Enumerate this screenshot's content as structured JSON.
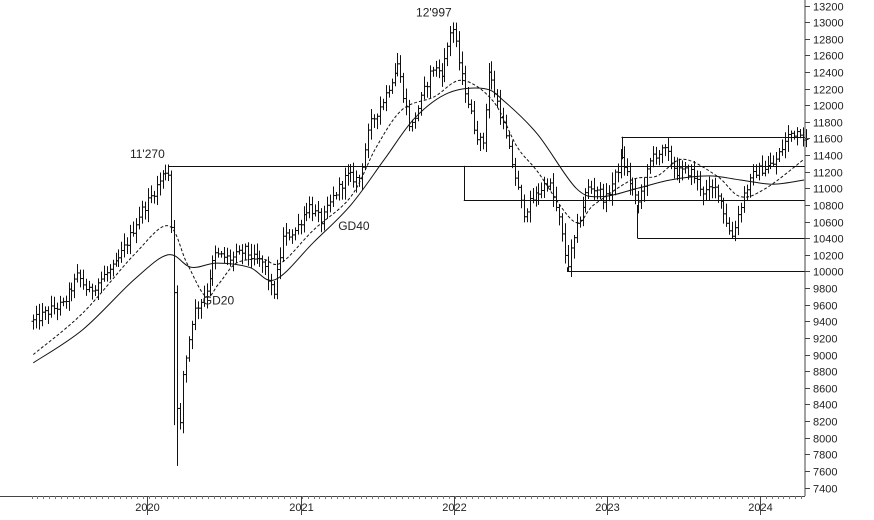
{
  "chart_data": {
    "type": "ohlc",
    "ylim": [
      7400,
      13200
    ],
    "x_range": [
      "2019-04-01",
      "2024-05-15"
    ],
    "y_ticks": [
      7400,
      7600,
      7800,
      8000,
      8200,
      8400,
      8600,
      8800,
      9000,
      9200,
      9400,
      9600,
      9800,
      10000,
      10200,
      10400,
      10600,
      10800,
      11000,
      11200,
      11400,
      11600,
      11800,
      12000,
      12200,
      12400,
      12600,
      12800,
      13000,
      13200
    ],
    "x_ticks": [
      {
        "label": "2020",
        "date": "2020-01-01"
      },
      {
        "label": "2021",
        "date": "2021-01-01"
      },
      {
        "label": "2022",
        "date": "2022-01-01"
      },
      {
        "label": "2023",
        "date": "2023-01-01"
      },
      {
        "label": "2024",
        "date": "2024-01-01"
      }
    ],
    "grid": false,
    "price_keypoints": [
      [
        "2019-04-05",
        9400
      ],
      [
        "2019-05-20",
        9550
      ],
      [
        "2019-06-15",
        9600
      ],
      [
        "2019-07-20",
        9950
      ],
      [
        "2019-08-15",
        9750
      ],
      [
        "2019-09-20",
        9950
      ],
      [
        "2019-10-15",
        10050
      ],
      [
        "2019-11-20",
        10400
      ],
      [
        "2019-12-15",
        10700
      ],
      [
        "2020-01-10",
        10900
      ],
      [
        "2020-02-20",
        11270
      ],
      [
        "2020-03-05",
        10000
      ],
      [
        "2020-03-16",
        7700
      ],
      [
        "2020-03-25",
        8700
      ],
      [
        "2020-04-20",
        9500
      ],
      [
        "2020-05-20",
        9750
      ],
      [
        "2020-06-10",
        10200
      ],
      [
        "2020-07-20",
        10150
      ],
      [
        "2020-08-20",
        10250
      ],
      [
        "2020-09-10",
        10150
      ],
      [
        "2020-10-05",
        10100
      ],
      [
        "2020-10-28",
        9700
      ],
      [
        "2020-11-20",
        10400
      ],
      [
        "2020-12-20",
        10500
      ],
      [
        "2021-01-20",
        10800
      ],
      [
        "2021-02-20",
        10600
      ],
      [
        "2021-03-20",
        10900
      ],
      [
        "2021-04-20",
        11150
      ],
      [
        "2021-05-20",
        11100
      ],
      [
        "2021-06-15",
        11750
      ],
      [
        "2021-07-20",
        12100
      ],
      [
        "2021-08-20",
        12500
      ],
      [
        "2021-09-20",
        11700
      ],
      [
        "2021-10-10",
        12000
      ],
      [
        "2021-11-10",
        12450
      ],
      [
        "2021-12-05",
        12400
      ],
      [
        "2021-12-28",
        12997
      ],
      [
        "2022-01-20",
        12350
      ],
      [
        "2022-02-20",
        11700
      ],
      [
        "2022-03-10",
        11500
      ],
      [
        "2022-03-25",
        12400
      ],
      [
        "2022-04-20",
        11950
      ],
      [
        "2022-05-20",
        11300
      ],
      [
        "2022-06-15",
        10700
      ],
      [
        "2022-07-05",
        10850
      ],
      [
        "2022-08-15",
        11100
      ],
      [
        "2022-09-10",
        10600
      ],
      [
        "2022-09-28",
        10050
      ],
      [
        "2022-10-20",
        10500
      ],
      [
        "2022-11-15",
        11000
      ],
      [
        "2022-12-10",
        11000
      ],
      [
        "2022-12-28",
        10850
      ],
      [
        "2023-02-05",
        11350
      ],
      [
        "2023-03-15",
        10800
      ],
      [
        "2023-04-20",
        11400
      ],
      [
        "2023-05-20",
        11450
      ],
      [
        "2023-06-15",
        11200
      ],
      [
        "2023-07-20",
        11200
      ],
      [
        "2023-08-20",
        10950
      ],
      [
        "2023-09-20",
        11000
      ],
      [
        "2023-10-25",
        10400
      ],
      [
        "2023-11-25",
        10950
      ],
      [
        "2023-12-20",
        11200
      ],
      [
        "2024-02-05",
        11300
      ],
      [
        "2024-03-10",
        11650
      ],
      [
        "2024-04-05",
        11700
      ],
      [
        "2024-04-20",
        11550
      ]
    ],
    "series": [
      {
        "name": "GD20",
        "values": [
          [
            "2019-04-05",
            9000
          ],
          [
            "2019-08-01",
            9500
          ],
          [
            "2019-12-01",
            10200
          ],
          [
            "2020-02-20",
            10550
          ],
          [
            "2020-04-05",
            10100
          ],
          [
            "2020-05-20",
            9700
          ],
          [
            "2020-06-20",
            9850
          ],
          [
            "2020-08-01",
            10100
          ],
          [
            "2020-10-01",
            10150
          ],
          [
            "2020-11-15",
            10100
          ],
          [
            "2021-02-01",
            10500
          ],
          [
            "2021-05-01",
            10900
          ],
          [
            "2021-07-01",
            11500
          ],
          [
            "2021-09-01",
            11950
          ],
          [
            "2021-11-15",
            12100
          ],
          [
            "2022-01-20",
            12300
          ],
          [
            "2022-04-05",
            12050
          ],
          [
            "2022-06-01",
            11500
          ],
          [
            "2022-07-20",
            11200
          ],
          [
            "2022-10-15",
            10600
          ],
          [
            "2022-12-01",
            10800
          ],
          [
            "2023-03-01",
            11100
          ],
          [
            "2023-05-01",
            11150
          ],
          [
            "2023-07-01",
            11350
          ],
          [
            "2023-09-20",
            11150
          ],
          [
            "2023-11-15",
            10900
          ],
          [
            "2024-01-15",
            11000
          ],
          [
            "2024-04-15",
            11350
          ]
        ]
      },
      {
        "name": "GD40",
        "values": [
          [
            "2019-04-05",
            8900
          ],
          [
            "2019-08-01",
            9300
          ],
          [
            "2019-12-01",
            9900
          ],
          [
            "2020-02-20",
            10200
          ],
          [
            "2020-04-15",
            10050
          ],
          [
            "2020-06-15",
            10100
          ],
          [
            "2020-09-01",
            10050
          ],
          [
            "2020-11-01",
            9900
          ],
          [
            "2021-02-01",
            10350
          ],
          [
            "2021-05-01",
            10800
          ],
          [
            "2021-07-20",
            11350
          ],
          [
            "2021-10-01",
            11850
          ],
          [
            "2021-12-20",
            12150
          ],
          [
            "2022-03-15",
            12200
          ],
          [
            "2022-05-01",
            12050
          ],
          [
            "2022-07-20",
            11650
          ],
          [
            "2022-10-20",
            11000
          ],
          [
            "2022-12-20",
            10900
          ],
          [
            "2023-03-15",
            11000
          ],
          [
            "2023-06-01",
            11100
          ],
          [
            "2023-09-01",
            11150
          ],
          [
            "2023-11-15",
            11100
          ],
          [
            "2024-02-01",
            11050
          ],
          [
            "2024-04-15",
            11100
          ]
        ]
      }
    ],
    "support_resistance": [
      {
        "price": 11270,
        "from": "2020-02-20",
        "to": "2024-05-15"
      },
      {
        "price": 11620,
        "from": "2023-02-05",
        "to": "2024-05-15"
      },
      {
        "price": 10860,
        "from": "2022-01-25",
        "to": "2024-05-15"
      },
      {
        "price": 10400,
        "from": "2023-03-15",
        "to": "2024-05-15"
      },
      {
        "price": 10000,
        "from": "2022-09-28",
        "to": "2024-05-15"
      }
    ],
    "vertical_connectors": [
      {
        "date": "2022-01-25",
        "from_price": 11270,
        "to_price": 10860
      },
      {
        "date": "2022-09-28",
        "from_price": 10050,
        "to_price": 10000
      },
      {
        "date": "2023-02-05",
        "from_price": 11350,
        "to_price": 11620
      },
      {
        "date": "2023-03-15",
        "from_price": 10800,
        "to_price": 10400
      }
    ],
    "annotations": [
      {
        "text": "11'270",
        "date": "2020-02-20",
        "price": 11270
      },
      {
        "text": "12'997",
        "date": "2021-12-28",
        "price": 12997
      },
      {
        "text": "GD20",
        "date": "2020-06-01",
        "price": 9600
      },
      {
        "text": "GD40",
        "date": "2021-04-15",
        "price": 10500
      }
    ]
  }
}
